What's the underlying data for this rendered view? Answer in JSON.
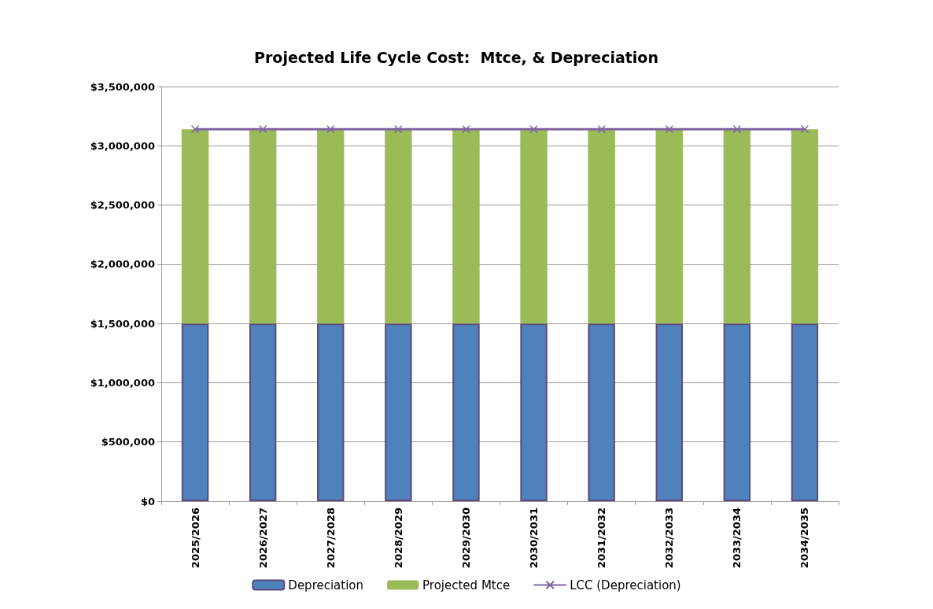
{
  "chart_data": {
    "type": "bar",
    "title": "Projected Life Cycle Cost:  Mtce, & Depreciation",
    "categories": [
      "2025/2026",
      "2026/2027",
      "2027/2028",
      "2028/2029",
      "2029/2030",
      "2030/2031",
      "2031/2032",
      "2032/2033",
      "2033/2034",
      "2034/2035"
    ],
    "stacked": true,
    "series": [
      {
        "name": "Depreciation",
        "color": "#4f81bd",
        "values": [
          1500000,
          1500000,
          1500000,
          1500000,
          1500000,
          1500000,
          1500000,
          1500000,
          1500000,
          1500000
        ]
      },
      {
        "name": "Projected Mtce",
        "color": "#9bbb59",
        "values": [
          1640000,
          1640000,
          1640000,
          1640000,
          1640000,
          1640000,
          1640000,
          1640000,
          1640000,
          1640000
        ]
      },
      {
        "name": "LCC (Depreciation)",
        "type": "line",
        "color": "#8064a2",
        "marker": "cross",
        "values": [
          3140000,
          3140000,
          3140000,
          3140000,
          3140000,
          3140000,
          3140000,
          3140000,
          3140000,
          3140000
        ]
      }
    ],
    "ylim": [
      0,
      3500000
    ],
    "yticks": [
      {
        "value": 0,
        "label": "$0"
      },
      {
        "value": 500000,
        "label": "$500,000"
      },
      {
        "value": 1000000,
        "label": "$1,000,000"
      },
      {
        "value": 1500000,
        "label": "$1,500,000"
      },
      {
        "value": 2000000,
        "label": "$2,000,000"
      },
      {
        "value": 2500000,
        "label": "$2,500,000"
      },
      {
        "value": 3000000,
        "label": "$3,000,000"
      },
      {
        "value": 3500000,
        "label": "$3,500,000"
      }
    ],
    "grid": "y",
    "legend": "bottom"
  }
}
